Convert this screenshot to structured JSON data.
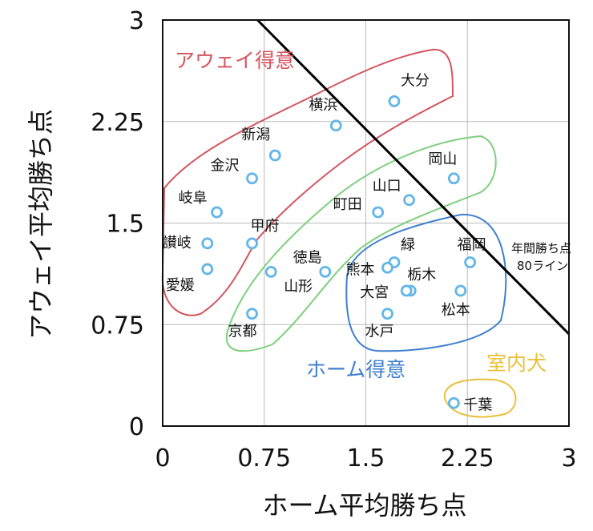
{
  "chart_data": {
    "type": "scatter",
    "xlabel": "ホーム平均勝ち点",
    "ylabel": "アウェイ平均勝ち点",
    "xlim": [
      0,
      3
    ],
    "ylim": [
      0,
      3
    ],
    "x_ticks": [
      "0",
      "0.75",
      "1.5",
      "2.25",
      "3"
    ],
    "y_ticks": [
      "0",
      "0.75",
      "1.5",
      "2.25",
      "3"
    ],
    "grid": true,
    "points": [
      {
        "label": "大分",
        "x": 1.71,
        "y": 2.4
      },
      {
        "label": "横浜",
        "x": 1.28,
        "y": 2.22
      },
      {
        "label": "新潟",
        "x": 0.83,
        "y": 2.0
      },
      {
        "label": "金沢",
        "x": 0.66,
        "y": 1.83
      },
      {
        "label": "岡山",
        "x": 2.15,
        "y": 1.83
      },
      {
        "label": "山口",
        "x": 1.82,
        "y": 1.67
      },
      {
        "label": "町田",
        "x": 1.59,
        "y": 1.58
      },
      {
        "label": "岐阜",
        "x": 0.4,
        "y": 1.58
      },
      {
        "label": "甲府",
        "x": 0.66,
        "y": 1.35
      },
      {
        "label": "讃岐",
        "x": 0.33,
        "y": 1.35
      },
      {
        "label": "愛媛",
        "x": 0.33,
        "y": 1.16
      },
      {
        "label": "徳島",
        "x": 1.2,
        "y": 1.14
      },
      {
        "label": "山形",
        "x": 0.8,
        "y": 1.14
      },
      {
        "label": "緑",
        "x": 1.71,
        "y": 1.21
      },
      {
        "label": "熊本",
        "x": 1.66,
        "y": 1.17
      },
      {
        "label": "福岡",
        "x": 2.27,
        "y": 1.21
      },
      {
        "label": "栃木",
        "x": 1.83,
        "y": 1.0
      },
      {
        "label": "大宮",
        "x": 1.8,
        "y": 1.0
      },
      {
        "label": "松本",
        "x": 2.2,
        "y": 1.0
      },
      {
        "label": "京都",
        "x": 0.66,
        "y": 0.83
      },
      {
        "label": "水戸",
        "x": 1.66,
        "y": 0.83
      },
      {
        "label": "千葉",
        "x": 2.15,
        "y": 0.17
      }
    ],
    "reference_line": {
      "label_line1": "年間勝ち点",
      "label_line2": "80ライン",
      "x1": 0.7,
      "y1": 3.0,
      "x2": 3.0,
      "y2": 0.68
    },
    "regions": [
      {
        "label": "アウェイ得意",
        "color": "#d4545e"
      },
      {
        "label": "ホーム得意",
        "color": "#3f7fd0"
      },
      {
        "label": "室内犬",
        "color": "#e8c13c"
      }
    ],
    "colors": {
      "point_stroke": "#62b6e8",
      "green_region": "#7ecf7e",
      "line": "#000000",
      "grid": "#bbbbbb"
    }
  }
}
